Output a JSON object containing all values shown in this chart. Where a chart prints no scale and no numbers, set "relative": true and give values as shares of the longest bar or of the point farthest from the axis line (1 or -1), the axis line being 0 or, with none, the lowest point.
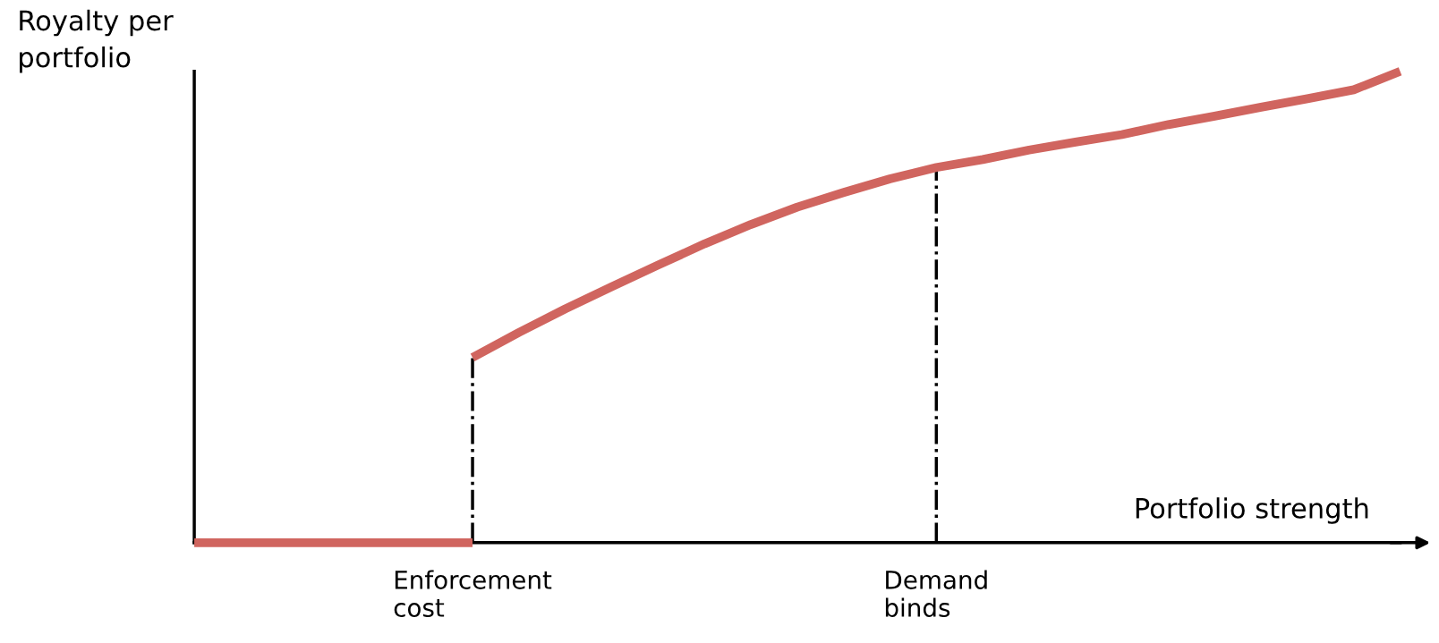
{
  "chart_data": {
    "type": "line",
    "relative": true,
    "xlabel": "Portfolio strength",
    "ylabel": "Royalty per portfolio",
    "categories": [
      null,
      null,
      null,
      null,
      null,
      null,
      "Enforcement cost",
      null,
      null,
      null,
      null,
      null,
      null,
      null,
      null,
      null,
      "Demand binds",
      null,
      null,
      null,
      null,
      null,
      null,
      null,
      null,
      null,
      null
    ],
    "series": [
      {
        "color": "#d0655f",
        "values": [
          0,
          0,
          0,
          0,
          0,
          0,
          0,
          null,
          null,
          null,
          null,
          null,
          null,
          null,
          null,
          null,
          null,
          null,
          null,
          null,
          null,
          null,
          null,
          null,
          null,
          null,
          null
        ]
      },
      {
        "color": "#d0655f",
        "values": [
          null,
          null,
          null,
          null,
          null,
          null,
          0.393,
          0.446,
          0.496,
          0.543,
          0.589,
          0.634,
          0.675,
          0.712,
          0.743,
          0.772,
          0.796,
          0.813,
          0.833,
          0.85,
          0.866,
          0.887,
          0.905,
          0.924,
          0.942,
          0.961,
          1
        ]
      }
    ],
    "ref_lines": [
      {
        "axis": "x",
        "value": "Enforcement cost",
        "color": "#000000",
        "line_style": "dashdot"
      },
      {
        "axis": "x",
        "value": "Demand binds",
        "color": "#000000",
        "line_style": "dashdot"
      }
    ],
    "tick_labels": "x",
    "marker": "none",
    "line_style": "solid"
  }
}
